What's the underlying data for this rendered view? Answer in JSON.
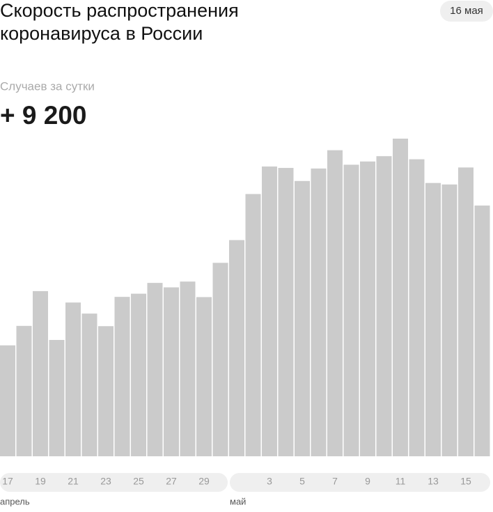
{
  "chart_data": {
    "type": "bar",
    "title": "Скорость распространения коронавируса в России",
    "date_badge": "16 мая",
    "subtitle": "Случаев за сутки",
    "headline": {
      "value": 9200,
      "label": "+ 9 200"
    },
    "groups": [
      {
        "name": "апрель",
        "categories": [
          "17",
          null,
          "19",
          null,
          "21",
          null,
          "23",
          null,
          "25",
          null,
          "27",
          null,
          "29",
          null
        ]
      },
      {
        "name": "май",
        "categories": [
          null,
          null,
          "3",
          null,
          "5",
          null,
          "7",
          null,
          "9",
          null,
          "11",
          null,
          "13",
          null,
          "15",
          null
        ]
      }
    ],
    "values": [
      4070,
      4785,
      6060,
      4268,
      5642,
      5236,
      4774,
      5849,
      5966,
      6361,
      6198,
      6411,
      5841,
      7099,
      7933,
      9623,
      10633,
      10581,
      10102,
      10559,
      11231,
      10699,
      10817,
      11012,
      11656,
      10899,
      10028,
      9974,
      10598,
      9200
    ],
    "color": "#cbcbcb"
  }
}
